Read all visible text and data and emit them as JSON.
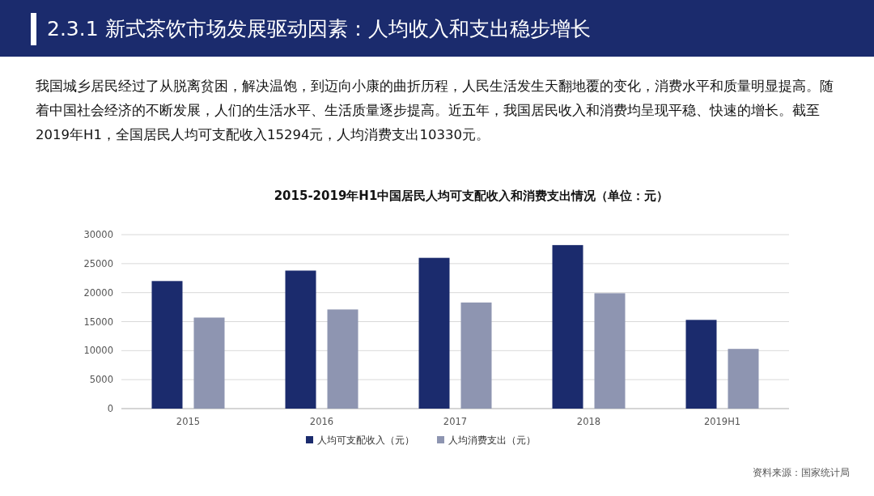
{
  "chart_data": {
    "type": "bar",
    "title": "2015-2019年H1中国居民人均可支配收入和消费支出情况（单位：元）",
    "categories": [
      "2015",
      "2016",
      "2017",
      "2018",
      "2019H1"
    ],
    "series": [
      {
        "name": "人均可支配收入（元）",
        "color": "#1b2b6d",
        "values": [
          22000,
          23800,
          26000,
          28200,
          15300
        ]
      },
      {
        "name": "人均消费支出（元）",
        "color": "#8e95b1",
        "values": [
          15700,
          17100,
          18300,
          19900,
          10300
        ]
      }
    ],
    "ylim": [
      0,
      30000
    ],
    "yticks": [
      0,
      5000,
      10000,
      15000,
      20000,
      25000,
      30000
    ],
    "grid": "y",
    "legend": "bottom",
    "annotations": [
      "2.3.1 新式茶饮市场发展驱动因素：人均收入和支出稳步增长",
      "我国城乡居民经过了从脱离贫困，解决温饱，到迈向小康的曲折历程，人民生活发生天翻地覆的变化，消费水平和质量明显提高。随着中国社会经济的不断发展，人们的生活水平、生活质量逐步提高。近五年，我国居民收入和消费均呈现平稳、快速的增长。截至2019年H1，全国居民人均可支配收入15294元，人均消费支出10330元。",
      "资料来源：国家统计局"
    ]
  }
}
